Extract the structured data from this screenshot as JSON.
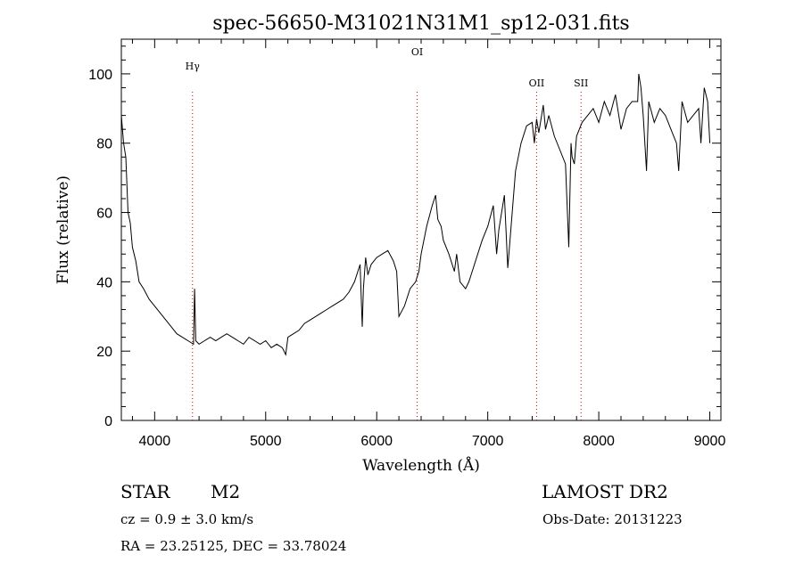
{
  "chart_data": {
    "type": "line",
    "title": "spec-56650-M31021N31M1_sp12-031.fits",
    "xlabel": "Wavelength (Å)",
    "ylabel": "Flux (relative)",
    "xlim": [
      3700,
      9100
    ],
    "ylim": [
      0,
      110
    ],
    "x_ticks": [
      4000,
      5000,
      6000,
      7000,
      8000,
      9000
    ],
    "y_ticks": [
      0,
      20,
      40,
      60,
      80,
      100
    ],
    "grid": false,
    "line_color": "#000000",
    "marker_color": "#c00000",
    "lines": [
      {
        "label": "Hγ",
        "x": 4341
      },
      {
        "label": "OI",
        "x": 6364
      },
      {
        "label": "OII",
        "x": 7440
      },
      {
        "label": "SII",
        "x": 7840
      }
    ],
    "series": [
      {
        "x": [
          3700,
          3720,
          3740,
          3760,
          3780,
          3800,
          3830,
          3860,
          3900,
          3950,
          4000,
          4050,
          4100,
          4150,
          4200,
          4250,
          4300,
          4350,
          4360,
          4370,
          4400,
          4450,
          4500,
          4550,
          4600,
          4650,
          4700,
          4750,
          4800,
          4850,
          4900,
          4950,
          5000,
          5050,
          5100,
          5150,
          5180,
          5200,
          5250,
          5300,
          5350,
          5400,
          5450,
          5500,
          5550,
          5600,
          5650,
          5700,
          5750,
          5800,
          5850,
          5870,
          5880,
          5900,
          5920,
          5950,
          6000,
          6050,
          6100,
          6150,
          6180,
          6200,
          6250,
          6300,
          6350,
          6380,
          6400,
          6450,
          6500,
          6530,
          6550,
          6580,
          6600,
          6650,
          6700,
          6720,
          6750,
          6800,
          6830,
          6850,
          6900,
          6950,
          7000,
          7050,
          7080,
          7100,
          7150,
          7180,
          7200,
          7250,
          7300,
          7350,
          7400,
          7420,
          7440,
          7460,
          7500,
          7520,
          7550,
          7600,
          7650,
          7700,
          7730,
          7750,
          7760,
          7780,
          7800,
          7850,
          7900,
          7950,
          8000,
          8050,
          8100,
          8150,
          8200,
          8250,
          8300,
          8350,
          8360,
          8380,
          8400,
          8430,
          8450,
          8500,
          8550,
          8600,
          8650,
          8700,
          8720,
          8750,
          8800,
          8850,
          8900,
          8920,
          8950,
          8980,
          9000
        ],
        "y": [
          88,
          80,
          76,
          60,
          57,
          50,
          46,
          40,
          38,
          35,
          33,
          31,
          29,
          27,
          25,
          24,
          23,
          22,
          38,
          23,
          22,
          23,
          24,
          23,
          24,
          25,
          24,
          23,
          22,
          24,
          23,
          22,
          23,
          21,
          22,
          21,
          19,
          24,
          25,
          26,
          28,
          29,
          30,
          31,
          32,
          33,
          34,
          35,
          37,
          40,
          45,
          27,
          38,
          47,
          42,
          45,
          47,
          48,
          49,
          46,
          43,
          30,
          33,
          38,
          40,
          43,
          48,
          56,
          62,
          65,
          58,
          56,
          52,
          48,
          43,
          48,
          40,
          38,
          40,
          42,
          47,
          52,
          56,
          62,
          48,
          55,
          65,
          44,
          52,
          72,
          80,
          85,
          86,
          80,
          87,
          83,
          91,
          84,
          88,
          82,
          78,
          74,
          50,
          80,
          76,
          74,
          82,
          86,
          88,
          90,
          86,
          92,
          88,
          94,
          84,
          90,
          92,
          92,
          100,
          96,
          88,
          72,
          92,
          86,
          90,
          88,
          84,
          80,
          72,
          92,
          86,
          88,
          90,
          80,
          96,
          92,
          80
        ]
      }
    ]
  },
  "info": {
    "object_class": "STAR",
    "subclass": "M2",
    "survey": "LAMOST DR2",
    "cz": "cz = 0.9 ± 3.0 km/s",
    "obs_date": "Obs-Date: 20131223",
    "coords": "RA =  23.25125, DEC =  33.78024"
  }
}
